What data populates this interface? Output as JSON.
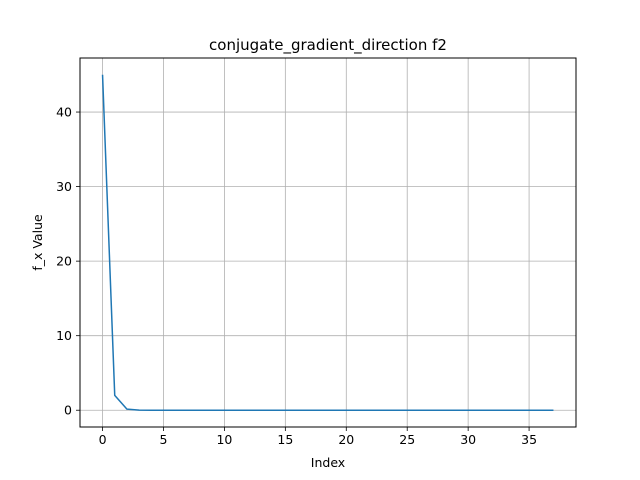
{
  "chart_data": {
    "type": "line",
    "title": "conjugate_gradient_direction f2",
    "xlabel": "Index",
    "ylabel": "f_x Value",
    "xlim": [
      -1.85,
      38.85
    ],
    "ylim": [
      -2.25,
      47.25
    ],
    "xticks": [
      0,
      5,
      10,
      15,
      20,
      25,
      30,
      35
    ],
    "yticks": [
      0,
      10,
      20,
      30,
      40
    ],
    "grid": true,
    "series": [
      {
        "color": "#1f77b4",
        "x": [
          0,
          1,
          2,
          3,
          4,
          5,
          6,
          7,
          8,
          9,
          10,
          11,
          12,
          13,
          14,
          15,
          16,
          17,
          18,
          19,
          20,
          21,
          22,
          23,
          24,
          25,
          26,
          27,
          28,
          29,
          30,
          31,
          32,
          33,
          34,
          35,
          36,
          37
        ],
        "y": [
          45,
          2.0,
          0.15,
          0.01,
          0,
          0,
          0,
          0,
          0,
          0,
          0,
          0,
          0,
          0,
          0,
          0,
          0,
          0,
          0,
          0,
          0,
          0,
          0,
          0,
          0,
          0,
          0,
          0,
          0,
          0,
          0,
          0,
          0,
          0,
          0,
          0,
          0,
          0
        ]
      }
    ]
  }
}
